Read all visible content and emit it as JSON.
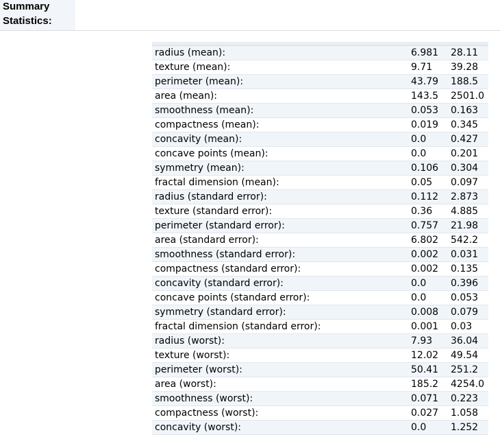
{
  "section": {
    "title_line1": "Summary",
    "title_line2": "Statistics:"
  },
  "stats": [
    {
      "feature": "radius (mean):",
      "min": "6.981",
      "max": "28.11"
    },
    {
      "feature": "texture (mean):",
      "min": "9.71",
      "max": "39.28"
    },
    {
      "feature": "perimeter (mean):",
      "min": "43.79",
      "max": "188.5"
    },
    {
      "feature": "area (mean):",
      "min": "143.5",
      "max": "2501.0"
    },
    {
      "feature": "smoothness (mean):",
      "min": "0.053",
      "max": "0.163"
    },
    {
      "feature": "compactness (mean):",
      "min": "0.019",
      "max": "0.345"
    },
    {
      "feature": "concavity (mean):",
      "min": "0.0",
      "max": "0.427"
    },
    {
      "feature": "concave points (mean):",
      "min": "0.0",
      "max": "0.201"
    },
    {
      "feature": "symmetry (mean):",
      "min": "0.106",
      "max": "0.304"
    },
    {
      "feature": "fractal dimension (mean):",
      "min": "0.05",
      "max": "0.097"
    },
    {
      "feature": "radius (standard error):",
      "min": "0.112",
      "max": "2.873"
    },
    {
      "feature": "texture (standard error):",
      "min": "0.36",
      "max": "4.885"
    },
    {
      "feature": "perimeter (standard error):",
      "min": "0.757",
      "max": "21.98"
    },
    {
      "feature": "area (standard error):",
      "min": "6.802",
      "max": "542.2"
    },
    {
      "feature": "smoothness (standard error):",
      "min": "0.002",
      "max": "0.031"
    },
    {
      "feature": "compactness (standard error):",
      "min": "0.002",
      "max": "0.135"
    },
    {
      "feature": "concavity (standard error):",
      "min": "0.0",
      "max": "0.396"
    },
    {
      "feature": "concave points (standard error):",
      "min": "0.0",
      "max": "0.053"
    },
    {
      "feature": "symmetry (standard error):",
      "min": "0.008",
      "max": "0.079"
    },
    {
      "feature": "fractal dimension (standard error):",
      "min": "0.001",
      "max": "0.03"
    },
    {
      "feature": "radius (worst):",
      "min": "7.93",
      "max": "36.04"
    },
    {
      "feature": "texture (worst):",
      "min": "12.02",
      "max": "49.54"
    },
    {
      "feature": "perimeter (worst):",
      "min": "50.41",
      "max": "251.2"
    },
    {
      "feature": "area (worst):",
      "min": "185.2",
      "max": "4254.0"
    },
    {
      "feature": "smoothness (worst):",
      "min": "0.071",
      "max": "0.223"
    },
    {
      "feature": "compactness (worst):",
      "min": "0.027",
      "max": "1.058"
    },
    {
      "feature": "concavity (worst):",
      "min": "0.0",
      "max": "1.252"
    }
  ]
}
